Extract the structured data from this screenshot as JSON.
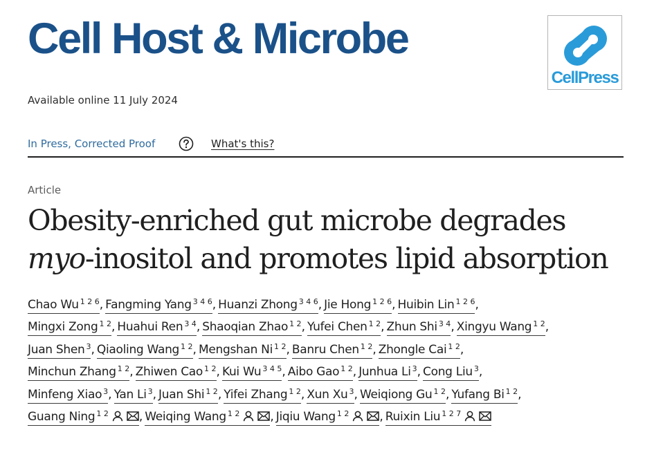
{
  "journal": {
    "name": "Cell Host & Microbe"
  },
  "publisher": {
    "logo_text": "CellPress"
  },
  "availability": "Available online 11 July 2024",
  "status": {
    "label": "In Press, Corrected Proof",
    "help_link": "What's this?"
  },
  "article": {
    "type": "Article",
    "title_line1": "Obesity-enriched gut microbe degrades",
    "title_line2_italic": "myo",
    "title_line2_rest": "-inositol and promotes lipid absorption"
  },
  "authors": {
    "lines": [
      [
        {
          "name": "Chao Wu",
          "aff": "1 2 6"
        },
        {
          "name": "Fangming Yang",
          "aff": "3 4 6"
        },
        {
          "name": "Huanzi Zhong",
          "aff": "3 4 6"
        },
        {
          "name": "Jie Hong",
          "aff": "1 2 6"
        },
        {
          "name": "Huibin Lin",
          "aff": "1 2 6"
        }
      ],
      [
        {
          "name": "Mingxi Zong",
          "aff": "1 2"
        },
        {
          "name": "Huahui Ren",
          "aff": "3 4"
        },
        {
          "name": "Shaoqian Zhao",
          "aff": "1 2"
        },
        {
          "name": "Yufei Chen",
          "aff": "1 2"
        },
        {
          "name": "Zhun Shi",
          "aff": "3 4"
        },
        {
          "name": "Xingyu Wang",
          "aff": "1 2"
        }
      ],
      [
        {
          "name": "Juan Shen",
          "aff": "3"
        },
        {
          "name": "Qiaoling Wang",
          "aff": "1 2"
        },
        {
          "name": "Mengshan Ni",
          "aff": "1 2"
        },
        {
          "name": "Banru Chen",
          "aff": "1 2"
        },
        {
          "name": "Zhongle Cai",
          "aff": "1 2"
        }
      ],
      [
        {
          "name": "Minchun Zhang",
          "aff": "1 2"
        },
        {
          "name": "Zhiwen Cao",
          "aff": "1 2"
        },
        {
          "name": "Kui Wu",
          "aff": "3 4 5"
        },
        {
          "name": "Aibo Gao",
          "aff": "1 2"
        },
        {
          "name": "Junhua Li",
          "aff": "3"
        },
        {
          "name": "Cong Liu",
          "aff": "3"
        }
      ],
      [
        {
          "name": "Minfeng Xiao",
          "aff": "3"
        },
        {
          "name": "Yan Li",
          "aff": "3"
        },
        {
          "name": "Juan Shi",
          "aff": "1 2"
        },
        {
          "name": "Yifei Zhang",
          "aff": "1 2"
        },
        {
          "name": "Xun Xu",
          "aff": "3"
        },
        {
          "name": "Weiqiong Gu",
          "aff": "1 2"
        },
        {
          "name": "Yufang Bi",
          "aff": "1 2"
        }
      ],
      [
        {
          "name": "Guang Ning",
          "aff": "1 2",
          "icons": [
            "person-icon",
            "envelope-icon"
          ]
        },
        {
          "name": "Weiqing Wang",
          "aff": "1 2",
          "icons": [
            "person-icon",
            "envelope-icon"
          ]
        },
        {
          "name": "Jiqiu Wang",
          "aff": "1 2",
          "icons": [
            "person-icon",
            "envelope-icon"
          ]
        },
        {
          "name": "Ruixin Liu",
          "aff": "1 2 7",
          "icons": [
            "person-icon",
            "envelope-icon"
          ]
        }
      ]
    ]
  },
  "colors": {
    "journal_blue": "#1b5189",
    "link_blue": "#2f6b9e",
    "logo_blue": "#2a9bd9"
  }
}
